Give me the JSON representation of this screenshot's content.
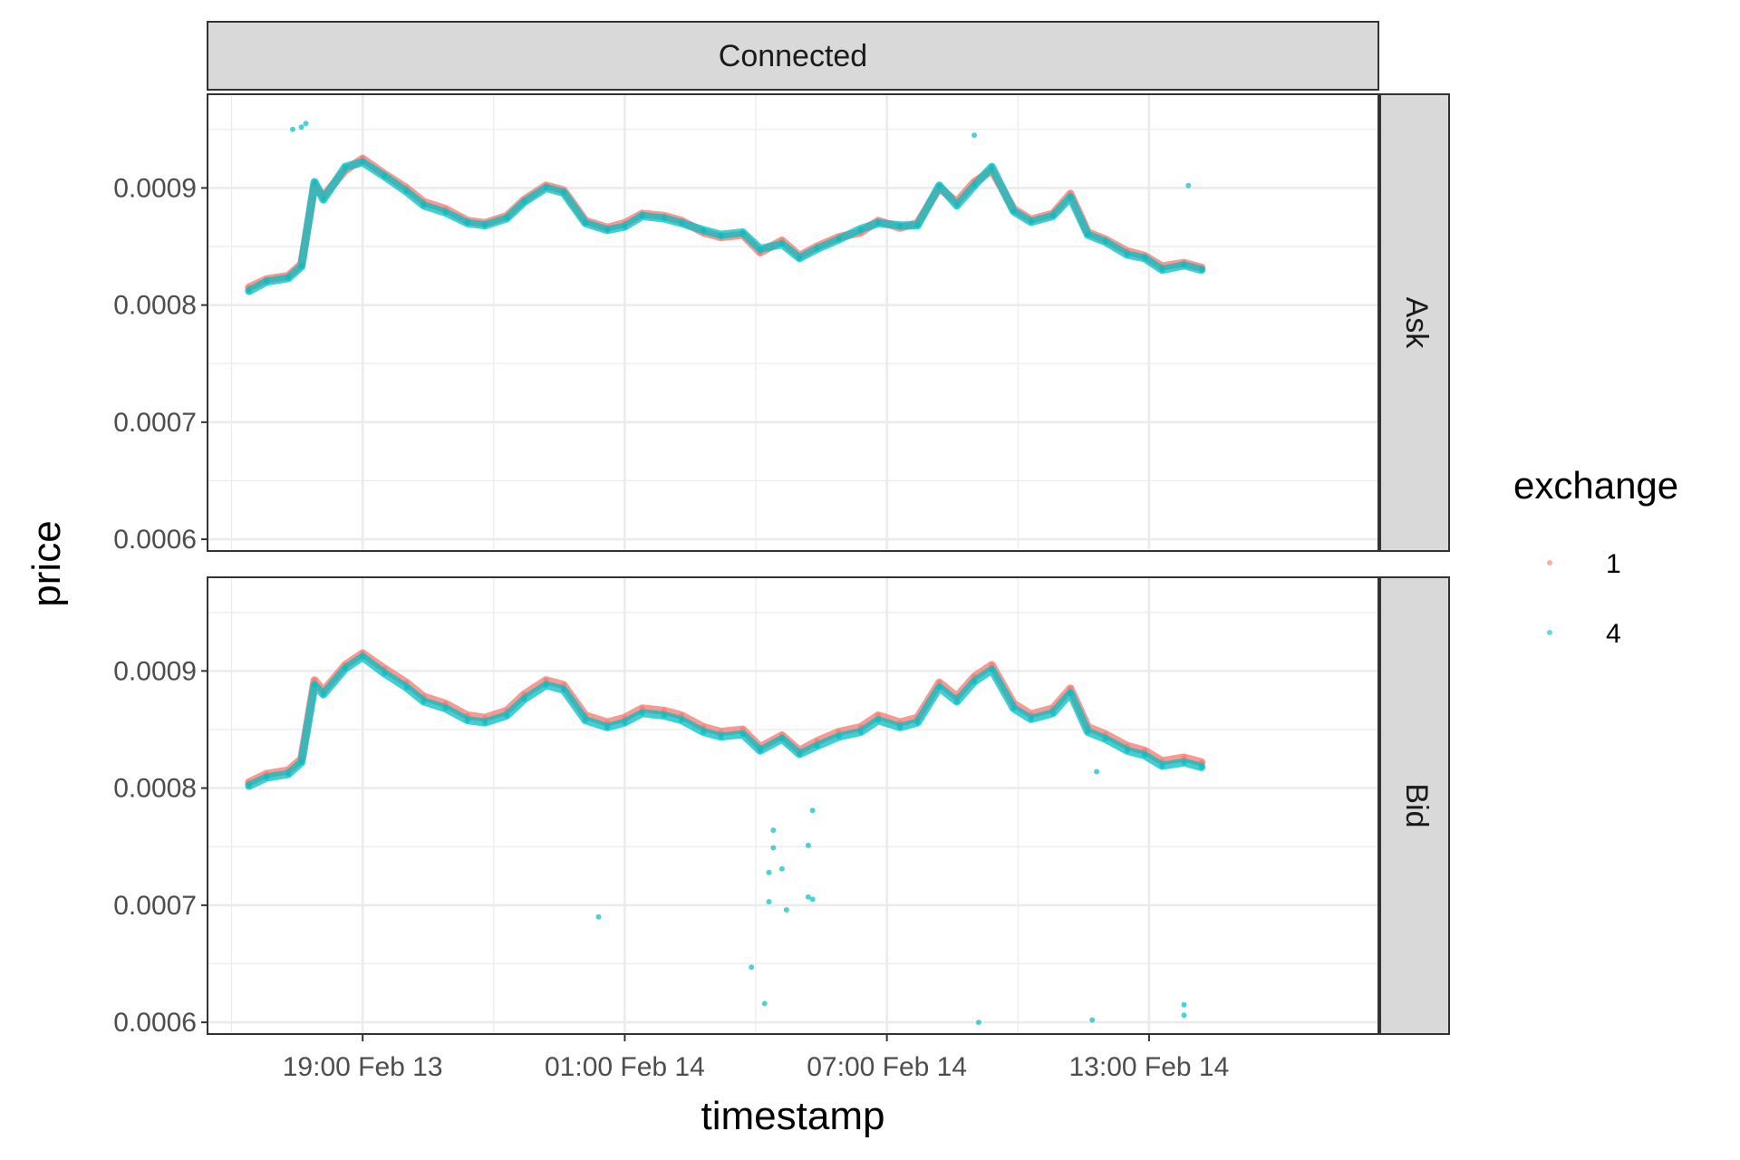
{
  "colors": {
    "exchange_1": "#F8766D",
    "exchange_4": "#00BFC4",
    "strip_bg": "#D9D9D9",
    "grid": "#EBEBEB",
    "frame": "#333333"
  },
  "chart_data": {
    "type": "scatter",
    "facet_column": "Connected",
    "facet_rows": [
      "Ask",
      "Bid"
    ],
    "xlabel": "timestamp",
    "ylabel": "price",
    "x_tick_labels": [
      "19:00 Feb 13",
      "01:00 Feb 14",
      "07:00 Feb 14",
      "13:00 Feb 14"
    ],
    "x_ticks_hours_from_feb13_0000": [
      19,
      25,
      31,
      37
    ],
    "xlim_hours_from_feb13_0000": [
      15.45,
      42.25
    ],
    "y_tick_labels": [
      "0.0006",
      "0.0007",
      "0.0008",
      "0.0009"
    ],
    "y_ticks": [
      0.0006,
      0.0007,
      0.0008,
      0.0009
    ],
    "ylim": [
      0.00059,
      0.00098
    ],
    "legend": {
      "title": "exchange",
      "placement": "right",
      "entries": [
        "1",
        "4"
      ]
    },
    "series": [
      {
        "facet": "Ask",
        "name": "1",
        "x": [
          16.4,
          16.8,
          17.3,
          17.6,
          17.9,
          18.1,
          18.6,
          19.0,
          19.5,
          20.0,
          20.4,
          20.9,
          21.4,
          21.8,
          22.3,
          22.7,
          23.2,
          23.6,
          24.1,
          24.6,
          25.0,
          25.4,
          25.9,
          26.3,
          26.8,
          27.2,
          27.7,
          28.1,
          28.6,
          29.0,
          29.4,
          29.9,
          30.4,
          30.8,
          31.3,
          31.7,
          32.2,
          32.6,
          33.0,
          33.4,
          33.9,
          34.3,
          34.8,
          35.2,
          35.6,
          36.0,
          36.5,
          36.9,
          37.3,
          37.8,
          38.2
        ],
        "y": [
          0.000815,
          0.000822,
          0.000825,
          0.000835,
          0.000902,
          0.000893,
          0.000915,
          0.000925,
          0.000912,
          0.0009,
          0.000888,
          0.000882,
          0.000872,
          0.00087,
          0.000876,
          0.00089,
          0.000902,
          0.000898,
          0.000872,
          0.000866,
          0.00087,
          0.000878,
          0.000876,
          0.000872,
          0.000862,
          0.000858,
          0.00086,
          0.000845,
          0.000855,
          0.000842,
          0.00085,
          0.000858,
          0.000862,
          0.000872,
          0.000866,
          0.00087,
          0.0009,
          0.000888,
          0.000905,
          0.000915,
          0.000882,
          0.000873,
          0.000878,
          0.000895,
          0.000862,
          0.000856,
          0.000846,
          0.000842,
          0.000833,
          0.000836,
          0.000832
        ]
      },
      {
        "facet": "Ask",
        "name": "4",
        "x": [
          16.4,
          16.8,
          17.3,
          17.6,
          17.9,
          18.1,
          18.6,
          19.0,
          19.5,
          20.0,
          20.4,
          20.9,
          21.4,
          21.8,
          22.3,
          22.7,
          23.2,
          23.6,
          24.1,
          24.6,
          25.0,
          25.4,
          25.9,
          26.3,
          26.8,
          27.2,
          27.7,
          28.1,
          28.6,
          29.0,
          29.4,
          29.9,
          30.4,
          30.8,
          31.3,
          31.7,
          32.2,
          32.6,
          33.0,
          33.4,
          33.9,
          34.3,
          34.8,
          35.2,
          35.6,
          36.0,
          36.5,
          36.9,
          37.3,
          37.8,
          38.2,
          17.4,
          17.6,
          17.7,
          33.0,
          37.9
        ],
        "y": [
          0.000812,
          0.00082,
          0.000823,
          0.000833,
          0.000905,
          0.00089,
          0.000918,
          0.000922,
          0.00091,
          0.000897,
          0.000885,
          0.000879,
          0.00087,
          0.000868,
          0.000874,
          0.000888,
          0.0009,
          0.000896,
          0.00087,
          0.000864,
          0.000867,
          0.000876,
          0.000874,
          0.00087,
          0.000864,
          0.00086,
          0.000862,
          0.000848,
          0.000852,
          0.00084,
          0.000848,
          0.000856,
          0.000865,
          0.00087,
          0.000868,
          0.000868,
          0.000902,
          0.000885,
          0.000902,
          0.000918,
          0.00088,
          0.000871,
          0.000876,
          0.000892,
          0.00086,
          0.000854,
          0.000843,
          0.00084,
          0.00083,
          0.000834,
          0.00083,
          0.00095,
          0.000952,
          0.000955,
          0.000945,
          0.000902
        ]
      },
      {
        "facet": "Bid",
        "name": "1",
        "x": [
          16.4,
          16.8,
          17.3,
          17.6,
          17.9,
          18.1,
          18.6,
          19.0,
          19.5,
          20.0,
          20.4,
          20.9,
          21.4,
          21.8,
          22.3,
          22.7,
          23.2,
          23.6,
          24.1,
          24.6,
          25.0,
          25.4,
          25.9,
          26.3,
          26.8,
          27.2,
          27.7,
          28.1,
          28.6,
          29.0,
          29.4,
          29.9,
          30.4,
          30.8,
          31.3,
          31.7,
          32.2,
          32.6,
          33.0,
          33.4,
          33.9,
          34.3,
          34.8,
          35.2,
          35.6,
          36.0,
          36.5,
          36.9,
          37.3,
          37.8,
          38.2
        ],
        "y": [
          0.000805,
          0.000812,
          0.000815,
          0.000825,
          0.000892,
          0.000883,
          0.000905,
          0.000915,
          0.000902,
          0.00089,
          0.000878,
          0.000872,
          0.000862,
          0.00086,
          0.000866,
          0.00088,
          0.000892,
          0.000888,
          0.000862,
          0.000856,
          0.00086,
          0.000868,
          0.000866,
          0.000862,
          0.000852,
          0.000848,
          0.00085,
          0.000835,
          0.000845,
          0.000832,
          0.00084,
          0.000848,
          0.000852,
          0.000862,
          0.000856,
          0.00086,
          0.00089,
          0.000878,
          0.000895,
          0.000905,
          0.000872,
          0.000863,
          0.000868,
          0.000885,
          0.000852,
          0.000846,
          0.000836,
          0.000832,
          0.000823,
          0.000826,
          0.000822
        ]
      },
      {
        "facet": "Bid",
        "name": "4",
        "x": [
          16.4,
          16.8,
          17.3,
          17.6,
          17.9,
          18.1,
          18.6,
          19.0,
          19.5,
          20.0,
          20.4,
          20.9,
          21.4,
          21.8,
          22.3,
          22.7,
          23.2,
          23.6,
          24.1,
          24.6,
          25.0,
          25.4,
          25.9,
          26.3,
          26.8,
          27.2,
          27.7,
          28.1,
          28.6,
          29.0,
          29.4,
          29.9,
          30.4,
          30.8,
          31.3,
          31.7,
          32.2,
          32.6,
          33.0,
          33.4,
          33.9,
          34.3,
          34.8,
          35.2,
          35.6,
          36.0,
          36.5,
          36.9,
          37.3,
          37.8,
          38.2,
          24.4,
          27.9,
          28.2,
          28.3,
          28.3,
          28.4,
          28.4,
          28.6,
          28.7,
          29.2,
          29.2,
          29.3,
          29.3,
          33.1,
          35.7,
          35.8,
          37.8,
          37.8
        ],
        "y": [
          0.000802,
          0.000809,
          0.000812,
          0.000822,
          0.000888,
          0.00088,
          0.000902,
          0.000912,
          0.000898,
          0.000886,
          0.000874,
          0.000868,
          0.000858,
          0.000856,
          0.000862,
          0.000876,
          0.000888,
          0.000884,
          0.000858,
          0.000852,
          0.000856,
          0.000864,
          0.000862,
          0.000858,
          0.000848,
          0.000844,
          0.000846,
          0.000832,
          0.000842,
          0.000829,
          0.000836,
          0.000844,
          0.000848,
          0.000858,
          0.000852,
          0.000856,
          0.000886,
          0.000874,
          0.000891,
          0.000901,
          0.000868,
          0.000859,
          0.000864,
          0.000881,
          0.000848,
          0.000842,
          0.000832,
          0.000828,
          0.000819,
          0.000822,
          0.000818,
          0.00069,
          0.000647,
          0.000616,
          0.000703,
          0.000728,
          0.000749,
          0.000764,
          0.000731,
          0.000696,
          0.000707,
          0.000751,
          0.000781,
          0.000705,
          0.0006,
          0.000602,
          0.000814,
          0.000615,
          0.000606
        ]
      }
    ]
  }
}
